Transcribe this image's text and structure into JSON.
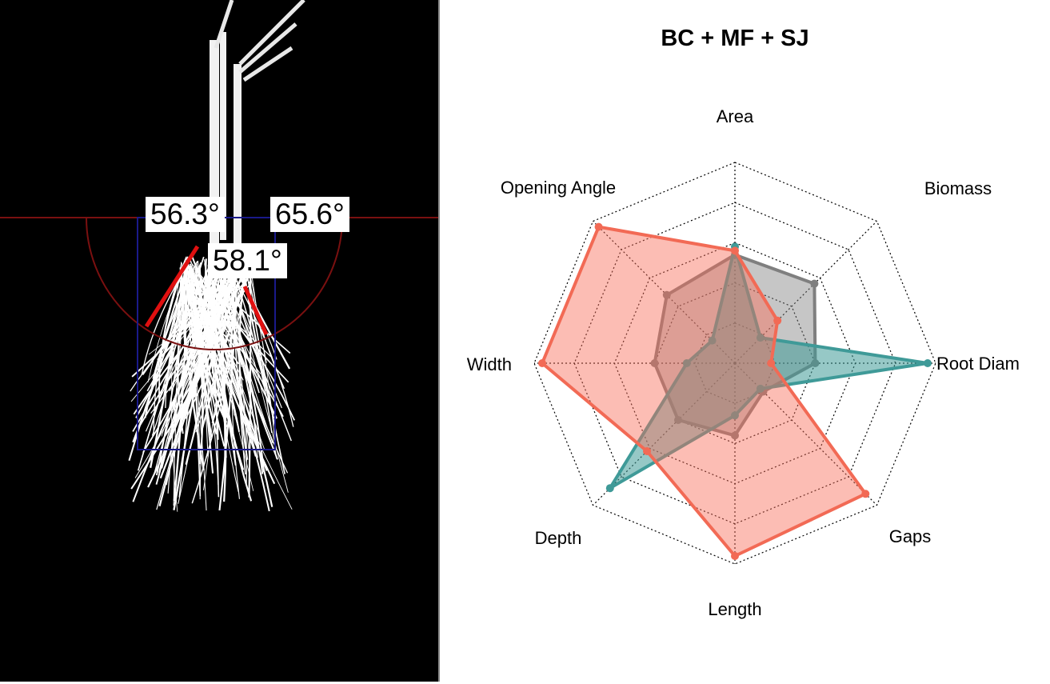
{
  "root_image": {
    "angles": {
      "left": "56.3°",
      "right": "65.6°",
      "center": "58.1°"
    }
  },
  "chart_data": {
    "type": "radar",
    "title": "BC + MF + SJ",
    "axes": [
      "Area",
      "Biomass",
      "Root Diam",
      "Gaps",
      "Length",
      "Depth",
      "Width",
      "Opening Angle"
    ],
    "rlim": [
      0,
      5
    ],
    "grid": true,
    "series": [
      {
        "color": "#7f7f7f",
        "fill": "rgba(128,128,128,0.45)",
        "values": [
          2.7,
          2.8,
          2.0,
          1.0,
          1.8,
          2.0,
          2.0,
          2.4
        ]
      },
      {
        "color": "#3f9a98",
        "fill": "rgba(63,154,152,0.55)",
        "values": [
          2.9,
          0.9,
          4.8,
          0.9,
          1.3,
          4.4,
          1.2,
          0.8
        ]
      },
      {
        "color": "#f26a55",
        "fill": "rgba(248,108,88,0.45)",
        "values": [
          2.8,
          1.5,
          0.9,
          4.6,
          4.8,
          3.1,
          4.8,
          4.8
        ]
      }
    ]
  }
}
